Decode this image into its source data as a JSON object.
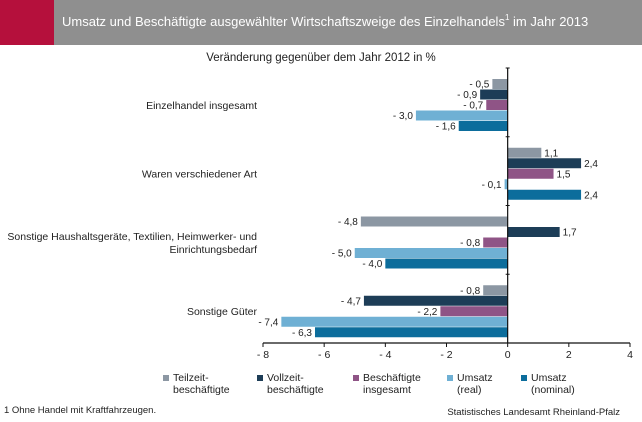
{
  "header": {
    "title": "Umsatz und Beschäftigte ausgewählter Wirtschaftszweige des Einzelhandels",
    "title_footnote_mark": "1",
    "title_suffix": " im Jahr 2013",
    "bar_color": "#8f8f8f",
    "accent_color": "#b5103c"
  },
  "footnote": "1 Ohne Handel mit Kraftfahrzeugen.",
  "source": "Statistisches Landesamt Rheinland-Pfalz",
  "chart_data": {
    "type": "bar",
    "orientation": "horizontal",
    "subtitle": "Veränderung gegenüber  dem Jahr 2012 in %",
    "categories": [
      [
        "Einzelhandel insgesamt"
      ],
      [
        "Waren verschiedener Art"
      ],
      [
        "Sonstige Haushaltsgeräte, Textilien, Heimwerker- und",
        "Einrichtungsbedarf"
      ],
      [
        "Sonstige Güter"
      ]
    ],
    "series": [
      {
        "name": [
          "Teilzeit-",
          "beschäftigte"
        ],
        "color": "#8c97a3",
        "values": [
          -0.5,
          1.1,
          -4.8,
          -0.8
        ],
        "labels": [
          "- 0,5",
          "1,1",
          "- 4,8",
          "- 0,8"
        ]
      },
      {
        "name": [
          "Vollzeit-",
          "beschäftigte"
        ],
        "color": "#1d3d57",
        "values": [
          -0.9,
          2.4,
          1.7,
          -4.7
        ],
        "labels": [
          "- 0,9",
          "2,4",
          "1,7",
          "- 4,7"
        ]
      },
      {
        "name": [
          "Beschäftigte",
          "insgesamt"
        ],
        "color": "#8f5486",
        "values": [
          -0.7,
          1.5,
          -0.8,
          -2.2
        ],
        "labels": [
          "- 0,7",
          "1,5",
          "- 0,8",
          "- 2,2"
        ]
      },
      {
        "name": [
          "Umsatz",
          "(real)"
        ],
        "color": "#6fb0d4",
        "values": [
          -3.0,
          -0.1,
          -5.0,
          -7.4
        ],
        "labels": [
          "- 3,0",
          "- 0,1",
          "- 5,0",
          "- 7,4"
        ]
      },
      {
        "name": [
          "Umsatz",
          "(nominal)"
        ],
        "color": "#0c6d9c",
        "values": [
          -1.6,
          2.4,
          -4.0,
          -6.3
        ],
        "labels": [
          "- 1,6",
          "2,4",
          "- 4,0",
          "- 6,3"
        ]
      }
    ],
    "xlim": [
      -8,
      4
    ],
    "xticks": [
      -8,
      -6,
      -4,
      -2,
      0,
      2,
      4
    ],
    "xtick_labels": [
      "- 8",
      "- 6",
      "- 4",
      "- 2",
      "0",
      "2",
      "4"
    ],
    "grid": false,
    "legend_position": "bottom"
  }
}
